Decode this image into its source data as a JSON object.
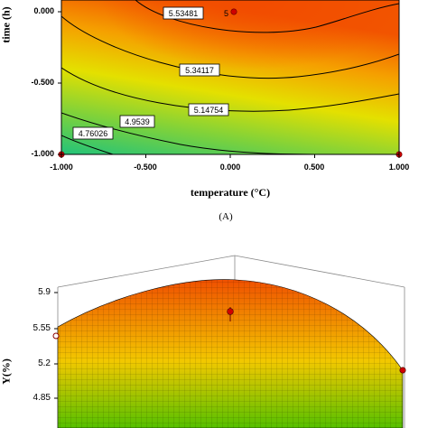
{
  "figure": {
    "panel_a_caption": "(A)"
  },
  "chart_data": [
    {
      "type": "contour",
      "xlabel": "temperature (°C)",
      "ylabel": "time (h)",
      "xlim": [
        -1.0,
        1.0
      ],
      "ylim": [
        -1.0,
        0.25
      ],
      "x_ticks": [
        "-1.000",
        "-0.500",
        "0.000",
        "0.500",
        "1.000"
      ],
      "y_ticks": [
        "0.000",
        "-0.500",
        "-1.000"
      ],
      "contour_levels": [
        "4.76026",
        "4.9539",
        "5.14754",
        "5.34117",
        "5.53481"
      ],
      "center_point_label": "5",
      "design_points": [
        {
          "x": -1.0,
          "y": -1.0
        },
        {
          "x": 1.0,
          "y": -1.0
        },
        {
          "x": 0.0,
          "y": 0.0
        }
      ],
      "colors": {
        "low": "#22c37a",
        "mid": "#e8e000",
        "high": "#f25400"
      }
    },
    {
      "type": "surface",
      "zlabel": "Y(%)",
      "z_ticks": [
        "5.9",
        "5.55",
        "5.2",
        "4.85"
      ],
      "colors": {
        "low": "#55c000",
        "mid": "#f2c800",
        "high": "#f05000"
      }
    }
  ]
}
